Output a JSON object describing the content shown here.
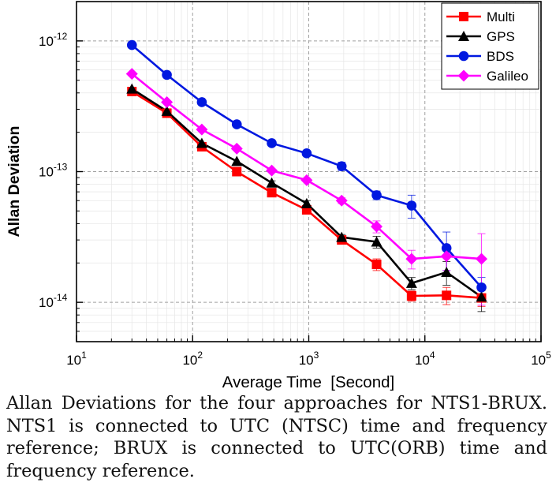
{
  "chart_data": {
    "type": "line",
    "title": "",
    "xlabel": "Average Time  [Second]",
    "ylabel": "Allan Deviation",
    "xscale": "log",
    "yscale": "log",
    "xlim": [
      10,
      100000
    ],
    "ylim": [
      5e-15,
      2e-12
    ],
    "x_ticks": [
      {
        "value": 10,
        "base": "10",
        "exp": "1"
      },
      {
        "value": 100,
        "base": "10",
        "exp": "2"
      },
      {
        "value": 1000,
        "base": "10",
        "exp": "3"
      },
      {
        "value": 10000,
        "base": "10",
        "exp": "4"
      },
      {
        "value": 100000,
        "base": "10",
        "exp": "5"
      }
    ],
    "y_ticks": [
      {
        "value": 1e-14,
        "base": "10",
        "exp": "-14"
      },
      {
        "value": 1e-13,
        "base": "10",
        "exp": "-13"
      },
      {
        "value": 1e-12,
        "base": "10",
        "exp": "-12"
      }
    ],
    "grid": true,
    "legend_position": "top-right",
    "x": [
      30,
      60,
      120,
      240,
      480,
      960,
      1920,
      3840,
      7680,
      15360,
      30720
    ],
    "series": [
      {
        "name": "Multi",
        "color": "#ff0000",
        "marker": "square",
        "values": [
          4.1e-13,
          2.8e-13,
          1.55e-13,
          1e-13,
          6.9e-14,
          5.1e-14,
          3e-14,
          1.95e-14,
          1.12e-14,
          1.13e-14,
          1.08e-14
        ],
        "errors": [
          0,
          0,
          0,
          5e-16,
          2e-15,
          3e-15,
          1.5e-15,
          2e-15,
          1e-15,
          1.7e-15,
          1.5e-15
        ]
      },
      {
        "name": "GPS",
        "color": "#000000",
        "marker": "triangle",
        "values": [
          4.3e-13,
          2.9e-13,
          1.65e-13,
          1.2e-13,
          8.2e-14,
          5.7e-14,
          3.15e-14,
          2.9e-14,
          1.4e-14,
          1.7e-14,
          1.1e-14
        ],
        "errors": [
          0,
          0,
          0,
          0,
          3e-15,
          3e-15,
          1.5e-15,
          3e-15,
          1.5e-15,
          3.5e-15,
          2.5e-15
        ]
      },
      {
        "name": "BDS",
        "color": "#0018e0",
        "marker": "circle",
        "values": [
          9.3e-13,
          5.5e-13,
          3.4e-13,
          2.3e-13,
          1.65e-13,
          1.38e-13,
          1.1e-13,
          6.6e-14,
          5.5e-14,
          2.6e-14,
          1.3e-14
        ],
        "errors": [
          0,
          0,
          0,
          0,
          0,
          5e-15,
          8e-15,
          5e-15,
          1.1e-14,
          8.5e-15,
          2.5e-15
        ]
      },
      {
        "name": "Galileo",
        "color": "#ff00ff",
        "marker": "diamond",
        "values": [
          5.6e-13,
          3.4e-13,
          2.1e-13,
          1.5e-13,
          1.02e-13,
          8.6e-14,
          6e-14,
          3.8e-14,
          2.15e-14,
          2.25e-14,
          2.15e-14
        ],
        "errors": [
          0,
          0,
          0,
          0,
          0,
          0,
          3e-15,
          4e-15,
          3.5e-15,
          5e-15,
          1.2e-14
        ]
      }
    ]
  },
  "caption": "Allan Deviations for the four approaches for NTS1-BRUX. NTS1 is connected to UTC (NTSC) time and frequency reference; BRUX is connected to UTC(ORB) time and frequency reference."
}
